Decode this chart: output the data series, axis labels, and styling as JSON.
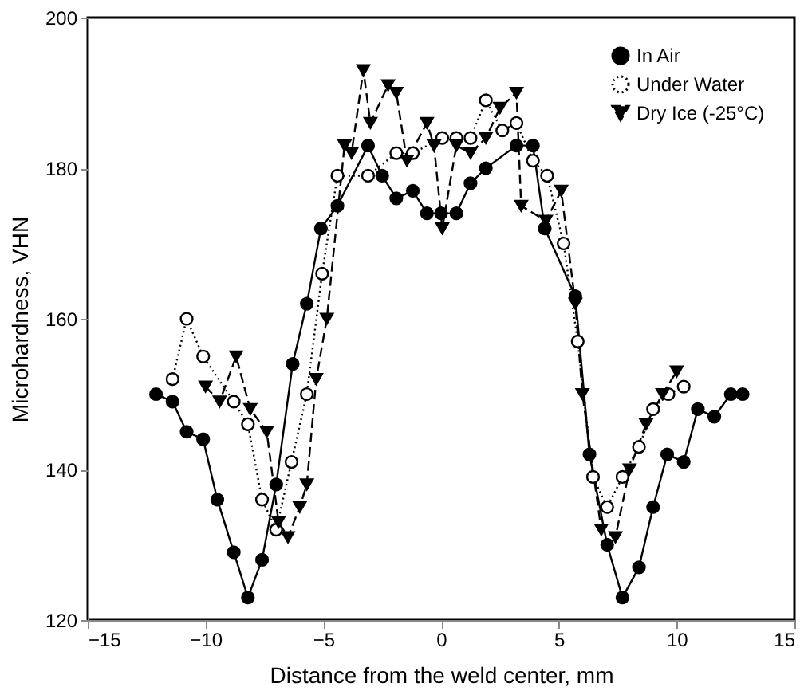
{
  "chart_data": {
    "type": "line",
    "xlabel": "Distance from the weld center, mm",
    "ylabel": "Microhardness, VHN",
    "xlim": [
      -15,
      15
    ],
    "xticks": [
      -15,
      -10,
      -5,
      0,
      5,
      10,
      15
    ],
    "ylim": [
      120,
      200
    ],
    "yticks": [
      120,
      140,
      160,
      180,
      200
    ],
    "grid": false,
    "legend": "top right",
    "series": [
      {
        "name": "In Air",
        "color": "#000000",
        "marker": "circle",
        "line_style": "solid",
        "x": [
          -12.1,
          -11.4,
          -10.8,
          -10.1,
          -9.5,
          -8.8,
          -8.2,
          -7.6,
          -7.0,
          -6.3,
          -5.7,
          -5.1,
          -4.4,
          -3.1,
          -2.5,
          -1.9,
          -1.2,
          -0.6,
          0.0,
          0.65,
          1.25,
          1.9,
          3.2,
          3.9,
          4.4,
          5.7,
          6.3,
          7.05,
          7.7,
          8.4,
          9.0,
          9.6,
          10.3,
          10.9,
          11.6,
          12.3,
          12.8
        ],
        "values": [
          150,
          149,
          145,
          144,
          136,
          129,
          123,
          128,
          138,
          154,
          162,
          172,
          175,
          183,
          179,
          176,
          177,
          174,
          174,
          174,
          178,
          180,
          183,
          183,
          172,
          163,
          142,
          130,
          123,
          127,
          135,
          142,
          141,
          148,
          147,
          150,
          150
        ]
      },
      {
        "name": "Under Water",
        "color": "#000000",
        "marker": "open circle",
        "line_style": "dotted",
        "x": [
          -11.4,
          -10.8,
          -10.1,
          -8.8,
          -8.2,
          -7.6,
          -7.0,
          -6.35,
          -5.7,
          -5.05,
          -4.4,
          -3.1,
          -1.9,
          -1.2,
          0.05,
          0.65,
          1.25,
          1.9,
          2.6,
          3.2,
          3.9,
          4.5,
          5.2,
          5.8,
          6.45,
          7.05,
          7.7,
          8.4,
          9.0,
          9.65,
          10.3
        ],
        "values": [
          152,
          160,
          155,
          149,
          146,
          136,
          132,
          141,
          150,
          166,
          179,
          179,
          182,
          182,
          184,
          184,
          184,
          189,
          185,
          186,
          181,
          179,
          170,
          157,
          139,
          135,
          139,
          143,
          148,
          150,
          151
        ]
      },
      {
        "name": "Dry Ice (-25°C)",
        "color": "#000000",
        "marker": "triangle-down",
        "line_style": "dashed",
        "x": [
          -10.0,
          -9.4,
          -8.7,
          -8.1,
          -7.4,
          -6.9,
          -6.5,
          -6.0,
          -5.7,
          -5.3,
          -4.85,
          -4.1,
          -3.8,
          -3.3,
          -3.0,
          -2.25,
          -1.9,
          -1.45,
          -0.6,
          -0.3,
          0.05,
          0.65,
          1.25,
          1.9,
          2.5,
          3.2,
          3.4,
          4.45,
          5.1,
          5.7,
          6.0,
          6.8,
          7.4,
          8.0,
          8.7,
          9.4,
          10.0
        ],
        "values": [
          151,
          149,
          155,
          148,
          145,
          133,
          131,
          135,
          138,
          152,
          160,
          183,
          182,
          193,
          186,
          191,
          190,
          181,
          186,
          183,
          172,
          183,
          182,
          184,
          188,
          190,
          175,
          173,
          177,
          162,
          150,
          132,
          131,
          140,
          146,
          150,
          153
        ]
      }
    ]
  }
}
